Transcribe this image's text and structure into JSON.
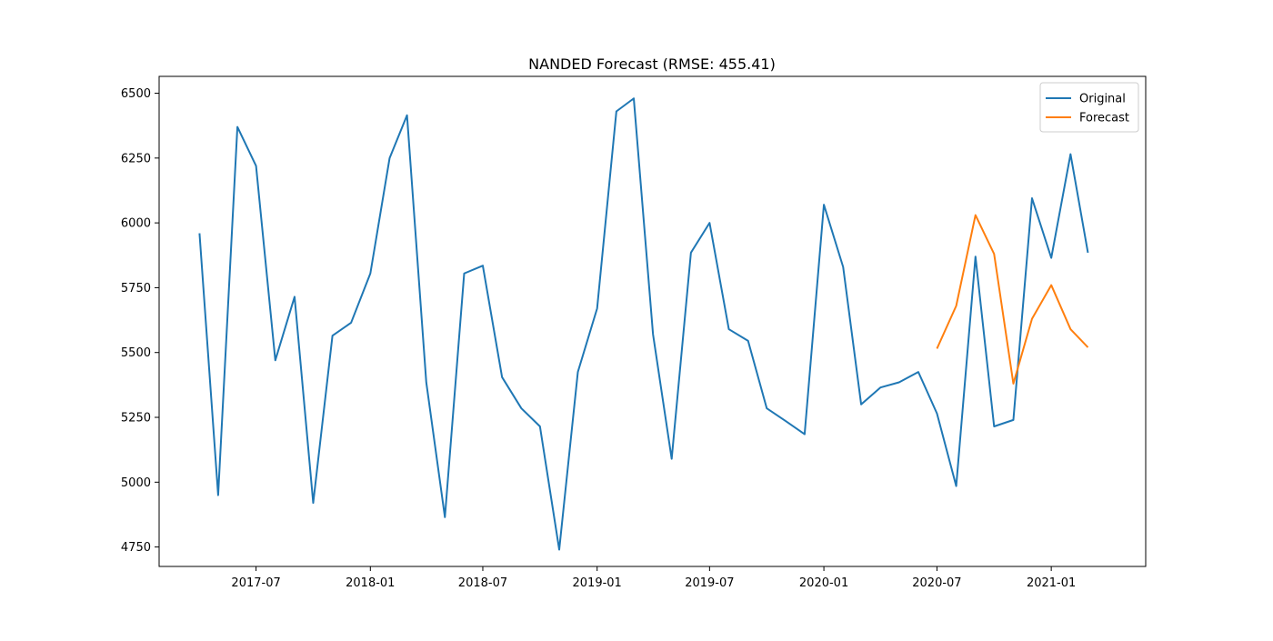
{
  "chart_data": {
    "type": "line",
    "title": "NANDED Forecast (RMSE: 455.41)",
    "xlabel": "",
    "ylabel": "",
    "x_tick_labels": [
      "2017-07",
      "2018-01",
      "2018-07",
      "2019-01",
      "2019-07",
      "2020-01",
      "2020-07",
      "2021-01"
    ],
    "y_tick_labels": [
      "4750",
      "5000",
      "5250",
      "5500",
      "5750",
      "6000",
      "6250",
      "6500"
    ],
    "ylim": [
      4675,
      6565
    ],
    "xlim": [
      "2017-01-26",
      "2021-06-02"
    ],
    "grid": false,
    "legend_position": "top-right",
    "series": [
      {
        "name": "Original",
        "color": "#1f77b4",
        "x": [
          "2017-04-01",
          "2017-05-01",
          "2017-06-01",
          "2017-07-01",
          "2017-08-01",
          "2017-09-01",
          "2017-10-01",
          "2017-11-01",
          "2017-12-01",
          "2018-01-01",
          "2018-02-01",
          "2018-03-01",
          "2018-04-01",
          "2018-05-01",
          "2018-06-01",
          "2018-07-01",
          "2018-08-01",
          "2018-09-01",
          "2018-10-01",
          "2018-11-01",
          "2018-12-01",
          "2019-01-01",
          "2019-02-01",
          "2019-03-01",
          "2019-04-01",
          "2019-05-01",
          "2019-06-01",
          "2019-07-01",
          "2019-08-01",
          "2019-09-01",
          "2019-10-01",
          "2019-11-01",
          "2019-12-01",
          "2020-01-01",
          "2020-02-01",
          "2020-03-01",
          "2020-04-01",
          "2020-05-01",
          "2020-06-01",
          "2020-07-01",
          "2020-08-01",
          "2020-09-01",
          "2020-10-01",
          "2020-11-01",
          "2020-12-01",
          "2021-01-01",
          "2021-02-01",
          "2021-03-01"
        ],
        "values": [
          5960,
          4950,
          6370,
          6220,
          5470,
          5715,
          4920,
          5565,
          5615,
          5805,
          6250,
          6415,
          5385,
          4865,
          5805,
          5835,
          5405,
          5285,
          5215,
          4740,
          5425,
          5670,
          6430,
          6480,
          5570,
          5090,
          5885,
          6000,
          5590,
          5545,
          5285,
          5235,
          5185,
          6070,
          5830,
          5300,
          5365,
          5385,
          5425,
          5265,
          4985,
          5870,
          5215,
          5240,
          6095,
          5865,
          6265,
          5885
        ]
      },
      {
        "name": "Forecast",
        "color": "#ff7f0e",
        "x": [
          "2020-07-01",
          "2020-08-01",
          "2020-09-01",
          "2020-10-01",
          "2020-11-01",
          "2020-12-01",
          "2021-01-01",
          "2021-02-01",
          "2021-03-01"
        ],
        "values": [
          5515,
          5680,
          6030,
          5880,
          5380,
          5630,
          5760,
          5590,
          5520
        ]
      }
    ]
  }
}
